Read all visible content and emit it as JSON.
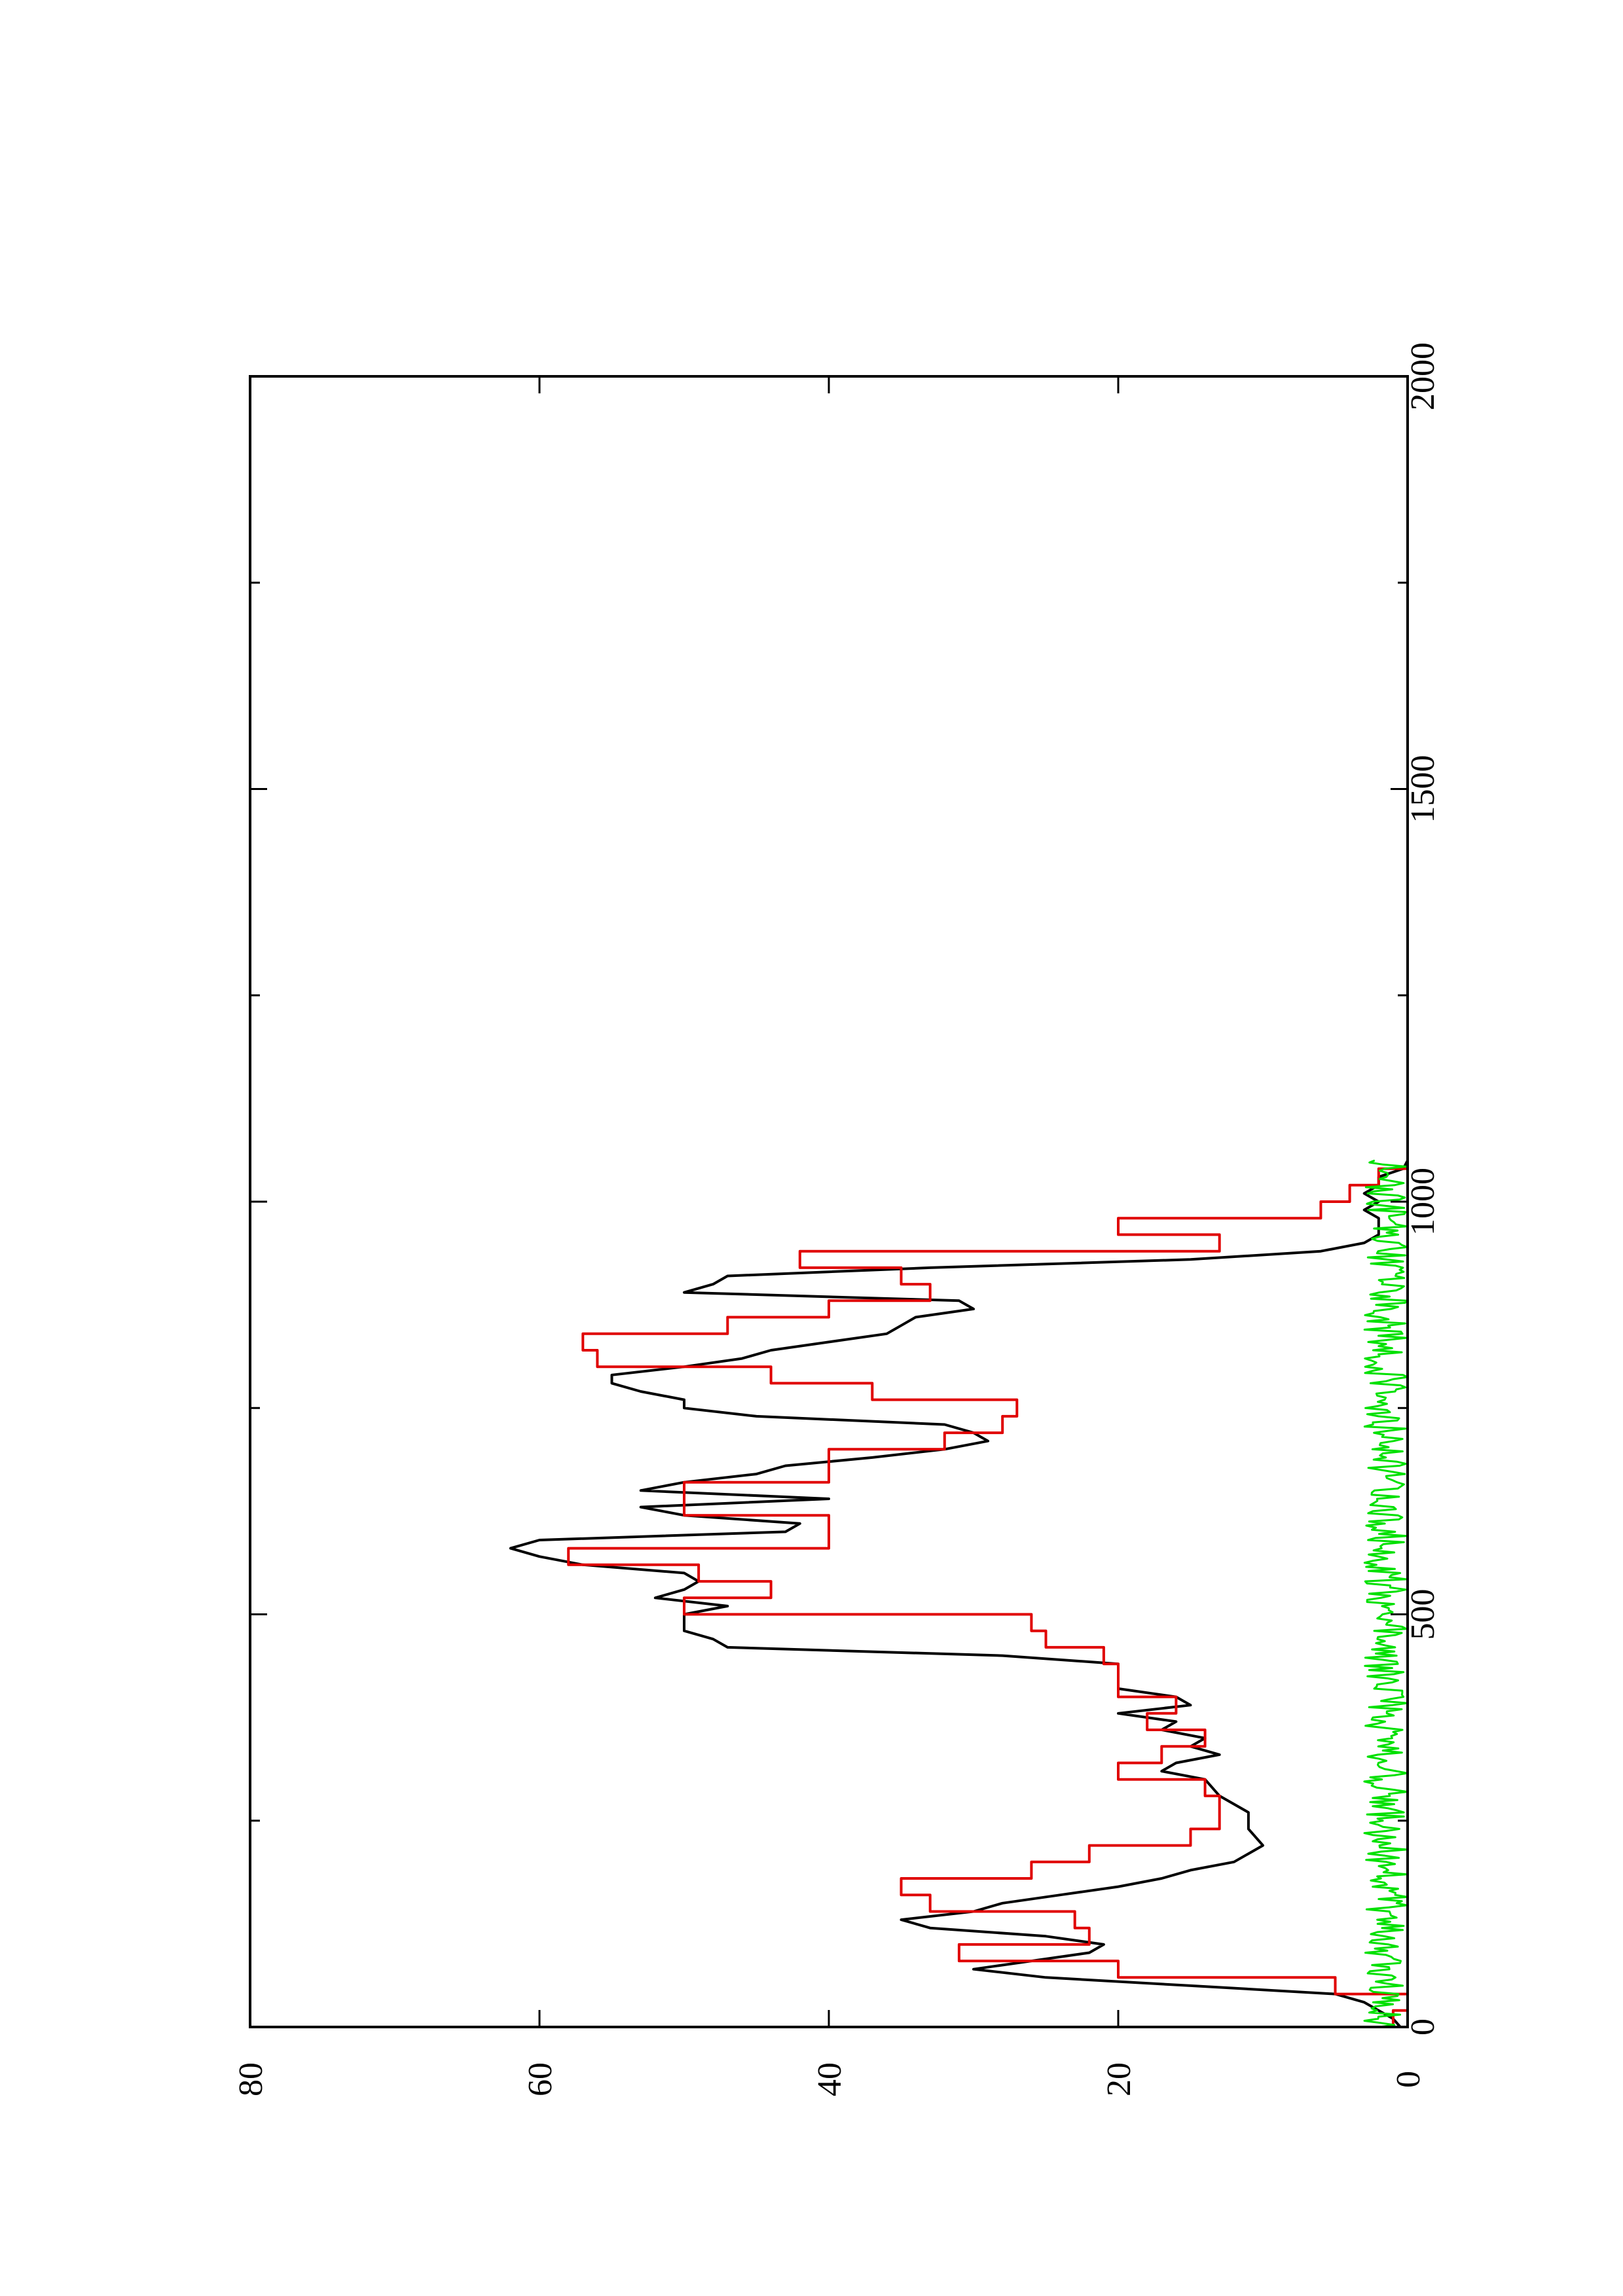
{
  "colors": {
    "background": "#ffffff",
    "frame": "#000000",
    "signal": "#000000",
    "fit": "#e00000",
    "residual": "#00e000"
  },
  "chart_data": {
    "type": "line",
    "orientation": "rotated-90-ccw",
    "title": "",
    "xlabel": "",
    "ylabel": "",
    "xlim": [
      0,
      2000
    ],
    "ylim": [
      0,
      80
    ],
    "x_ticks": [
      "0",
      "500",
      "1000",
      "1500",
      "2000"
    ],
    "x_minor_ticks": [
      250,
      750,
      1250,
      1750
    ],
    "y_ticks": [
      "0",
      "20",
      "40",
      "60",
      "80"
    ],
    "grid": false,
    "legend": "none",
    "series": [
      {
        "style": "smooth",
        "color_key": "signal",
        "x": [
          0,
          10,
          20,
          30,
          40,
          50,
          60,
          70,
          80,
          90,
          100,
          110,
          120,
          130,
          140,
          150,
          160,
          170,
          180,
          190,
          200,
          210,
          220,
          240,
          260,
          280,
          300,
          310,
          320,
          330,
          340,
          350,
          360,
          370,
          380,
          390,
          400,
          410,
          420,
          430,
          440,
          450,
          460,
          470,
          480,
          490,
          500,
          510,
          520,
          530,
          540,
          550,
          560,
          570,
          580,
          590,
          600,
          610,
          620,
          630,
          640,
          650,
          660,
          670,
          680,
          690,
          700,
          710,
          720,
          730,
          740,
          750,
          760,
          770,
          780,
          790,
          800,
          810,
          820,
          830,
          840,
          850,
          860,
          870,
          880,
          890,
          900,
          910,
          920,
          930,
          940,
          950,
          960,
          970,
          980,
          990,
          1000,
          1010,
          1020,
          1030,
          1040,
          1050
        ],
        "y": [
          0.5,
          1,
          2,
          3,
          5,
          15,
          25,
          30,
          26,
          22,
          21,
          25,
          33,
          35,
          30,
          28,
          24,
          20,
          17,
          15,
          12,
          11,
          10,
          11,
          11,
          13,
          14,
          17,
          16,
          13,
          15,
          14,
          17,
          16,
          20,
          15,
          16,
          20,
          20,
          20,
          20,
          28,
          47,
          48,
          50,
          50,
          50,
          47,
          52,
          50,
          49,
          50,
          57,
          60,
          62,
          60,
          43,
          42,
          50,
          53,
          40,
          53,
          50,
          45,
          43,
          37,
          32,
          29,
          30,
          32,
          45,
          50,
          50,
          53,
          55,
          55,
          50,
          46,
          44,
          40,
          36,
          35,
          34,
          30,
          31,
          50,
          48,
          47,
          33,
          15,
          6,
          3,
          2,
          2,
          2,
          3,
          2,
          3,
          2,
          2,
          0.3,
          0
        ]
      },
      {
        "style": "step",
        "color_key": "fit",
        "x": [
          0,
          20,
          40,
          60,
          80,
          100,
          120,
          140,
          160,
          180,
          200,
          220,
          240,
          260,
          280,
          300,
          320,
          340,
          360,
          380,
          400,
          420,
          440,
          460,
          480,
          500,
          520,
          540,
          560,
          580,
          600,
          620,
          640,
          660,
          680,
          700,
          720,
          740,
          760,
          780,
          800,
          820,
          840,
          860,
          880,
          900,
          920,
          940,
          960,
          980,
          1000,
          1020,
          1040,
          1060
        ],
        "y": [
          1,
          0,
          5,
          20,
          31,
          22,
          23,
          33,
          35,
          26,
          22,
          15,
          13,
          13,
          14,
          20,
          17,
          14,
          18,
          16,
          20,
          20,
          21,
          25,
          26,
          50,
          44,
          49,
          58,
          40,
          40,
          50,
          50,
          40,
          40,
          32,
          28,
          27,
          37,
          44,
          56,
          57,
          47,
          40,
          33,
          35,
          42,
          13,
          20,
          6,
          4,
          2,
          0,
          0
        ]
      },
      {
        "style": "noise",
        "color_key": "residual",
        "x": [
          0,
          1050
        ],
        "y_mean": 1.5,
        "y_max": 3
      }
    ]
  }
}
